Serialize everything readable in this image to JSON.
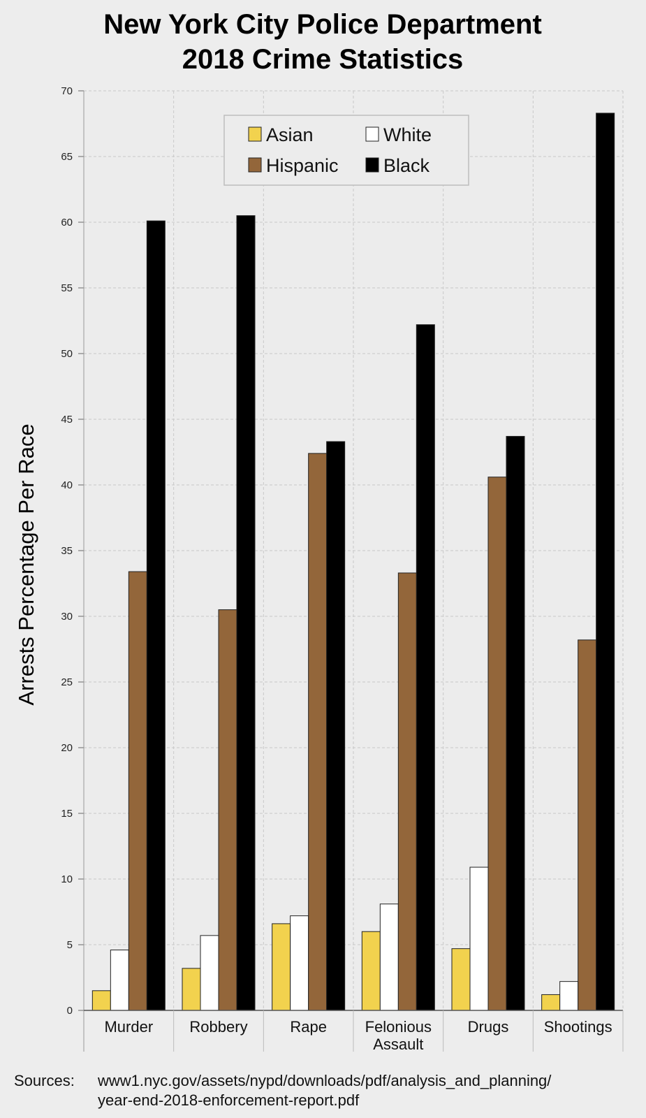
{
  "chart_data": {
    "type": "bar",
    "title_lines": [
      "New York City Police Department",
      "2018 Crime Statistics"
    ],
    "ylabel": "Arrests Percentage Per Race",
    "xlabel": "",
    "ylim": [
      0,
      70
    ],
    "yticks": [
      0,
      5,
      10,
      15,
      20,
      25,
      30,
      35,
      40,
      45,
      50,
      55,
      60,
      65,
      70
    ],
    "grid": true,
    "legend_position": "top-center",
    "categories": [
      [
        "Murder"
      ],
      [
        "Robbery"
      ],
      [
        "Rape"
      ],
      [
        "Felonious",
        "Assault"
      ],
      [
        "Drugs"
      ],
      [
        "Shootings"
      ]
    ],
    "series": [
      {
        "name": "Asian",
        "color": "#f2d24e",
        "values": [
          1.5,
          3.2,
          6.6,
          6.0,
          4.7,
          1.2
        ]
      },
      {
        "name": "White",
        "color": "#ffffff",
        "values": [
          4.6,
          5.7,
          7.2,
          8.1,
          10.9,
          2.2
        ]
      },
      {
        "name": "Hispanic",
        "color": "#93663a",
        "values": [
          33.4,
          30.5,
          42.4,
          33.3,
          40.6,
          28.2
        ]
      },
      {
        "name": "Black",
        "color": "#000000",
        "values": [
          60.1,
          60.5,
          43.3,
          52.2,
          43.7,
          68.3
        ]
      }
    ],
    "source_label": "Sources:",
    "source_lines": [
      "www1.nyc.gov/assets/nypd/downloads/pdf/analysis_and_planning/",
      "year-end-2018-enforcement-report.pdf"
    ]
  }
}
